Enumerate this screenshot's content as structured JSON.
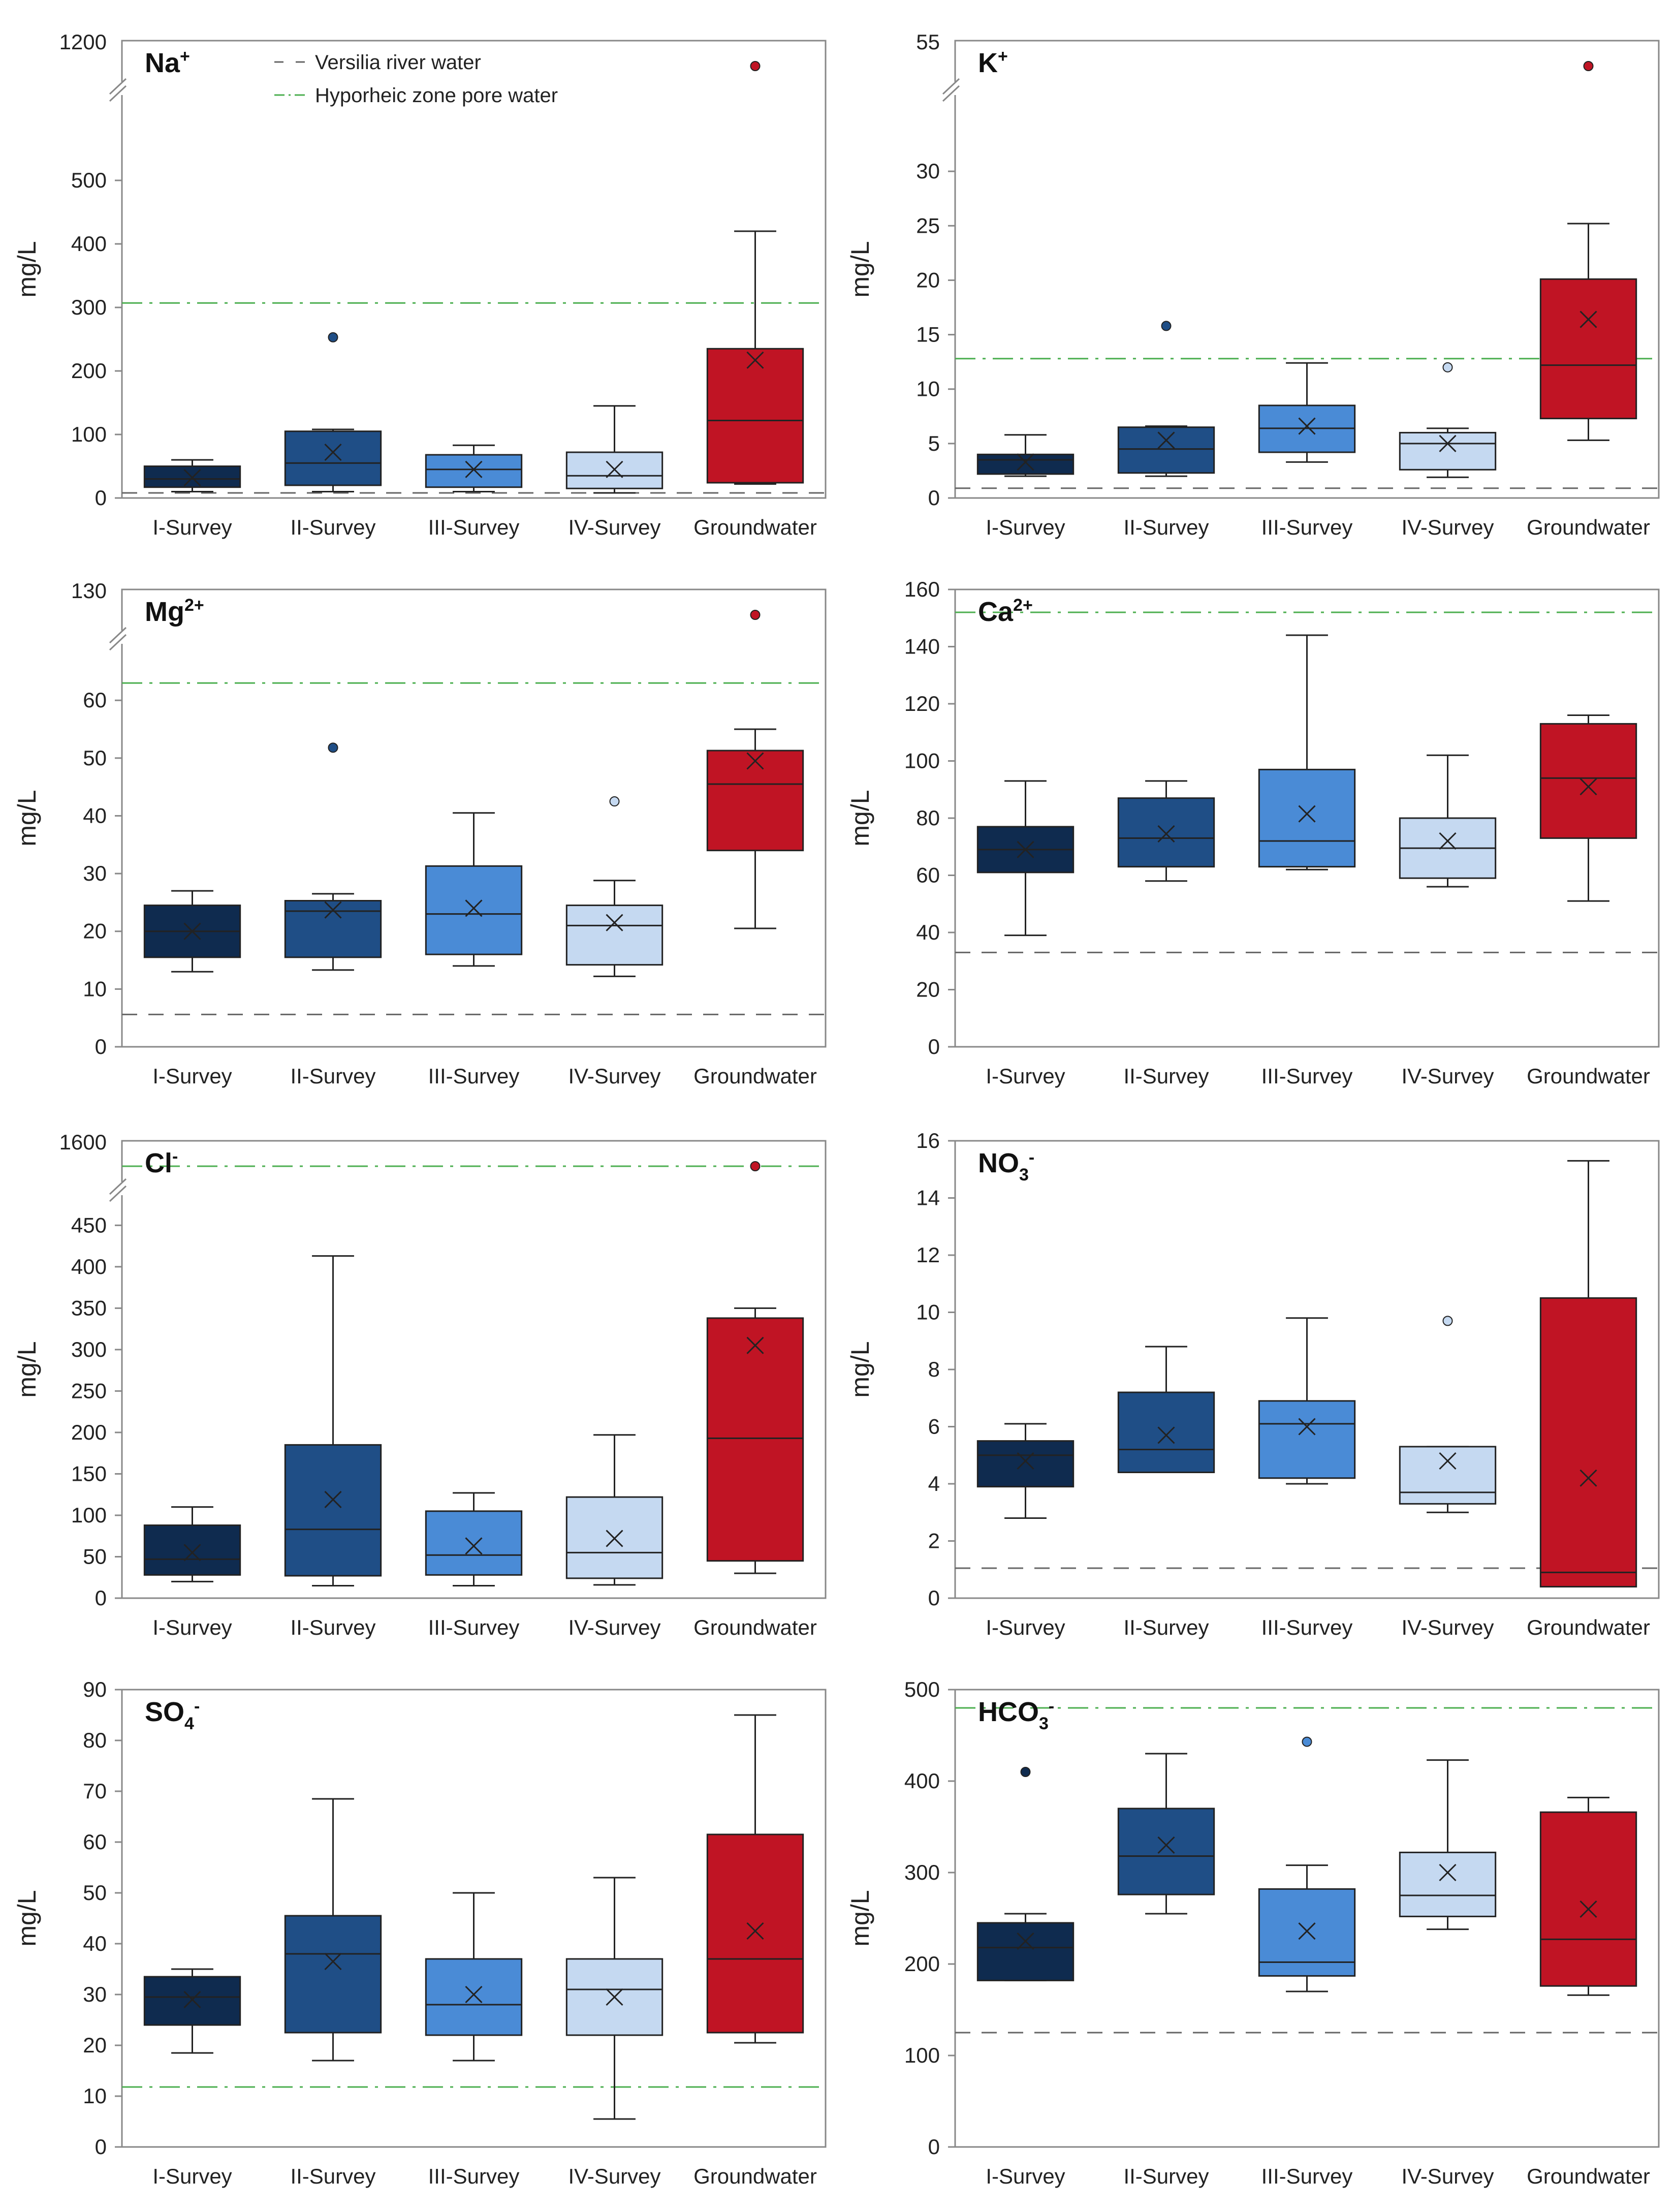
{
  "colors": {
    "I-Survey": "#0f2b4f",
    "II-Survey": "#1f4e86",
    "III-Survey": "#4a8bd6",
    "IV-Survey": "#c5d9f1",
    "Groundwater": "#c01424",
    "river_line": "#666666",
    "hyporheic_line": "#4caf50",
    "axis": "#888888"
  },
  "legend": {
    "river": "Versilia river water",
    "hyporheic": "Hyporheic zone pore water"
  },
  "chart_data": [
    {
      "type": "box",
      "title": {
        "base": "Na",
        "sup": "+",
        "sub": ""
      },
      "ylabel": "mg/L",
      "categories": [
        "I-Survey",
        "II-Survey",
        "III-Survey",
        "IV-Survey",
        "Groundwater"
      ],
      "ylim": [
        0,
        600
      ],
      "yticks": [
        0,
        100,
        200,
        300,
        400,
        500
      ],
      "break": {
        "label": "1200",
        "value": 1200
      },
      "boxes": [
        {
          "min": 10,
          "q1": 17,
          "median": 30,
          "q3": 50,
          "max": 60,
          "mean": 32,
          "outliers": []
        },
        {
          "min": 10,
          "q1": 20,
          "median": 55,
          "q3": 105,
          "max": 108,
          "mean": 72,
          "outliers": [
            253
          ]
        },
        {
          "min": 10,
          "q1": 17,
          "median": 45,
          "q3": 68,
          "max": 83,
          "mean": 45,
          "outliers": []
        },
        {
          "min": 8,
          "q1": 15,
          "median": 35,
          "q3": 72,
          "max": 145,
          "mean": 45,
          "outliers": []
        },
        {
          "min": 22,
          "q1": 24,
          "median": 122,
          "q3": 235,
          "max": 420,
          "mean": 217,
          "outliers": [
            1200
          ]
        }
      ],
      "reference": {
        "river": 8,
        "hyporheic": 307
      }
    },
    {
      "type": "box",
      "title": {
        "base": "K",
        "sup": "+",
        "sub": ""
      },
      "ylabel": "mg/L",
      "categories": [
        "I-Survey",
        "II-Survey",
        "III-Survey",
        "IV-Survey",
        "Groundwater"
      ],
      "ylim": [
        0,
        35
      ],
      "yticks": [
        0,
        5,
        10,
        15,
        20,
        25,
        30
      ],
      "break": {
        "label": "55",
        "value": 55
      },
      "boxes": [
        {
          "min": 2,
          "q1": 2.2,
          "median": 3.5,
          "q3": 4,
          "max": 5.8,
          "mean": 3.3,
          "outliers": []
        },
        {
          "min": 2,
          "q1": 2.3,
          "median": 4.5,
          "q3": 6.5,
          "max": 6.6,
          "mean": 5.3,
          "outliers": [
            15.8
          ]
        },
        {
          "min": 3.3,
          "q1": 4.2,
          "median": 6.4,
          "q3": 8.5,
          "max": 12.4,
          "mean": 6.6,
          "outliers": []
        },
        {
          "min": 1.9,
          "q1": 2.6,
          "median": 5,
          "q3": 6,
          "max": 6.4,
          "mean": 5,
          "outliers": [
            12
          ]
        },
        {
          "min": 5.3,
          "q1": 7.3,
          "median": 12.2,
          "q3": 20.1,
          "max": 25.2,
          "mean": 16.4,
          "outliers": [
            55
          ]
        }
      ],
      "reference": {
        "river": 0.9,
        "hyporheic": 12.8
      }
    },
    {
      "type": "box",
      "title": {
        "base": "Mg",
        "sup": "2+",
        "sub": ""
      },
      "ylabel": "mg/L",
      "categories": [
        "I-Survey",
        "II-Survey",
        "III-Survey",
        "IV-Survey",
        "Groundwater"
      ],
      "ylim": [
        0,
        66
      ],
      "yticks": [
        0,
        10,
        20,
        30,
        40,
        50,
        60
      ],
      "break": {
        "label": "130",
        "value": 130
      },
      "boxes": [
        {
          "min": 13,
          "q1": 15.5,
          "median": 20,
          "q3": 24.5,
          "max": 27,
          "mean": 20,
          "outliers": []
        },
        {
          "min": 13.3,
          "q1": 15.5,
          "median": 23.5,
          "q3": 25.3,
          "max": 26.5,
          "mean": 23.7,
          "outliers": [
            51.8
          ]
        },
        {
          "min": 14,
          "q1": 16,
          "median": 23,
          "q3": 31.3,
          "max": 40.5,
          "mean": 24,
          "outliers": []
        },
        {
          "min": 12.2,
          "q1": 14.2,
          "median": 21,
          "q3": 24.5,
          "max": 28.8,
          "mean": 21.5,
          "outliers": [
            42.5
          ]
        },
        {
          "min": 20.5,
          "q1": 34,
          "median": 45.5,
          "q3": 51.3,
          "max": 55,
          "mean": 49.5,
          "outliers": [
            130
          ]
        }
      ],
      "reference": {
        "river": 5.6,
        "hyporheic": 63
      }
    },
    {
      "type": "box",
      "title": {
        "base": "Ca",
        "sup": "2+",
        "sub": ""
      },
      "ylabel": "mg/L",
      "categories": [
        "I-Survey",
        "II-Survey",
        "III-Survey",
        "IV-Survey",
        "Groundwater"
      ],
      "ylim": [
        0,
        160
      ],
      "yticks": [
        0,
        20,
        40,
        60,
        80,
        100,
        120,
        140,
        160
      ],
      "break": null,
      "boxes": [
        {
          "min": 39,
          "q1": 61,
          "median": 69,
          "q3": 77,
          "max": 93,
          "mean": 69,
          "outliers": []
        },
        {
          "min": 58,
          "q1": 63,
          "median": 73,
          "q3": 87,
          "max": 93,
          "mean": 74.5,
          "outliers": []
        },
        {
          "min": 62,
          "q1": 63,
          "median": 72,
          "q3": 97,
          "max": 144,
          "mean": 81.5,
          "outliers": []
        },
        {
          "min": 56,
          "q1": 59,
          "median": 69.5,
          "q3": 80,
          "max": 102,
          "mean": 72,
          "outliers": []
        },
        {
          "min": 51,
          "q1": 73,
          "median": 94,
          "q3": 113,
          "max": 116,
          "mean": 91,
          "outliers": []
        }
      ],
      "reference": {
        "river": 33,
        "hyporheic": 152
      }
    },
    {
      "type": "box",
      "title": {
        "base": "Cl",
        "sup": "-",
        "sub": ""
      },
      "ylabel": "mg/L",
      "categories": [
        "I-Survey",
        "II-Survey",
        "III-Survey",
        "IV-Survey",
        "Groundwater"
      ],
      "ylim": [
        0,
        460
      ],
      "yticks": [
        0,
        50,
        100,
        150,
        200,
        250,
        300,
        350,
        400,
        450
      ],
      "break": {
        "label": "1600",
        "value": 1600
      },
      "boxes": [
        {
          "min": 20,
          "q1": 28,
          "median": 47,
          "q3": 88,
          "max": 110,
          "mean": 55,
          "outliers": []
        },
        {
          "min": 15,
          "q1": 27,
          "median": 83,
          "q3": 185,
          "max": 413,
          "mean": 119,
          "outliers": []
        },
        {
          "min": 15,
          "q1": 28,
          "median": 52,
          "q3": 105,
          "max": 127,
          "mean": 63,
          "outliers": []
        },
        {
          "min": 16,
          "q1": 24,
          "median": 55,
          "q3": 122,
          "max": 197,
          "mean": 72,
          "outliers": []
        },
        {
          "min": 30,
          "q1": 45,
          "median": 193,
          "q3": 338,
          "max": 350,
          "mean": 305,
          "outliers": [
            1600
          ]
        }
      ],
      "reference": {
        "river": null,
        "hyporheic": 475
      }
    },
    {
      "type": "box",
      "title": {
        "base": "NO",
        "sup": "-",
        "sub": "3"
      },
      "ylabel": "mg/L",
      "categories": [
        "I-Survey",
        "II-Survey",
        "III-Survey",
        "IV-Survey",
        "Groundwater"
      ],
      "ylim": [
        0,
        16
      ],
      "yticks": [
        0,
        2,
        4,
        6,
        8,
        10,
        12,
        14,
        16
      ],
      "break": null,
      "boxes": [
        {
          "min": 2.8,
          "q1": 3.9,
          "median": 5,
          "q3": 5.5,
          "max": 6.1,
          "mean": 4.8,
          "outliers": []
        },
        {
          "min": 4.4,
          "q1": 4.4,
          "median": 5.2,
          "q3": 7.2,
          "max": 8.8,
          "mean": 5.7,
          "outliers": []
        },
        {
          "min": 4,
          "q1": 4.2,
          "median": 6.1,
          "q3": 6.9,
          "max": 9.8,
          "mean": 6,
          "outliers": []
        },
        {
          "min": 3,
          "q1": 3.3,
          "median": 3.7,
          "q3": 5.3,
          "max": 5.3,
          "mean": 4.8,
          "outliers": [
            9.7
          ]
        },
        {
          "min": 0.4,
          "q1": 0.4,
          "median": 0.9,
          "q3": 10.5,
          "max": 15.3,
          "mean": 4.2,
          "outliers": []
        }
      ],
      "reference": {
        "river": 1.05,
        "hyporheic": null
      }
    },
    {
      "type": "box",
      "title": {
        "base": "SO",
        "sup": "-",
        "sub": "4"
      },
      "ylabel": "mg/L",
      "categories": [
        "I-Survey",
        "II-Survey",
        "III-Survey",
        "IV-Survey",
        "Groundwater"
      ],
      "ylim": [
        0,
        90
      ],
      "yticks": [
        0,
        10,
        20,
        30,
        40,
        50,
        60,
        70,
        80,
        90
      ],
      "break": null,
      "boxes": [
        {
          "min": 18.5,
          "q1": 24,
          "median": 29.5,
          "q3": 33.5,
          "max": 35,
          "mean": 29,
          "outliers": []
        },
        {
          "min": 17,
          "q1": 22.5,
          "median": 38,
          "q3": 45.5,
          "max": 68.5,
          "mean": 36.5,
          "outliers": []
        },
        {
          "min": 17,
          "q1": 22,
          "median": 28,
          "q3": 37,
          "max": 50,
          "mean": 30,
          "outliers": []
        },
        {
          "min": 5.5,
          "q1": 22,
          "median": 31,
          "q3": 37,
          "max": 53,
          "mean": 29.5,
          "outliers": []
        },
        {
          "min": 20.5,
          "q1": 22.5,
          "median": 37,
          "q3": 61.5,
          "max": 85,
          "mean": 42.5,
          "outliers": []
        }
      ],
      "reference": {
        "river": null,
        "hyporheic": 11.8
      }
    },
    {
      "type": "box",
      "title": {
        "base": "HCO",
        "sup": "-",
        "sub": "3"
      },
      "ylabel": "mg/L",
      "categories": [
        "I-Survey",
        "II-Survey",
        "III-Survey",
        "IV-Survey",
        "Groundwater"
      ],
      "ylim": [
        0,
        500
      ],
      "yticks": [
        0,
        100,
        200,
        300,
        400,
        500
      ],
      "break": null,
      "boxes": [
        {
          "min": 182,
          "q1": 182,
          "median": 218,
          "q3": 245,
          "max": 255,
          "mean": 225,
          "outliers": [
            410
          ]
        },
        {
          "min": 255,
          "q1": 276,
          "median": 318,
          "q3": 370,
          "max": 430,
          "mean": 330,
          "outliers": []
        },
        {
          "min": 170,
          "q1": 187,
          "median": 202,
          "q3": 282,
          "max": 308,
          "mean": 236,
          "outliers": [
            443
          ]
        },
        {
          "min": 238,
          "q1": 252,
          "median": 275,
          "q3": 322,
          "max": 423,
          "mean": 300,
          "outliers": []
        },
        {
          "min": 166,
          "q1": 176,
          "median": 227,
          "q3": 366,
          "max": 382,
          "mean": 260,
          "outliers": []
        }
      ],
      "reference": {
        "river": 125,
        "hyporheic": 480
      }
    }
  ]
}
